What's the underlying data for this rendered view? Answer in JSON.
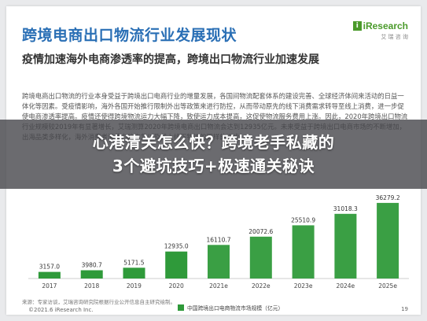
{
  "slide": {
    "title": "跨境电商出口物流行业发展现状",
    "logo": {
      "brand": "iResearch",
      "sub": "艾 瑞 咨 询"
    },
    "subtitle": "疫情加速海外电商渗透率的提高，跨境出口物流行业加速发展",
    "body": "跨境电商出口物流的行业本身受益于跨境出口电商行业的增量发展，各国间物流配套体系的建设完善、全球经济体间来活动的日益一体化等因素。受疫情影响，海外各国开始推行限制外出等政策来进行防控，从而带动原先的线下消费需求转导至线上消费，进一步促使电商渗透率提高。疫情还使得跨境物流运力大幅下降，致使运力成本提高，这促使物流服务费用上涨。因此，2020年跨境出口物流行业规模较2019年有显著增长，艾瑞测算2020年跨境电商出口物流会达到12935亿元。未来受益于跨境出口电商市场的不断增加，出海品类多样化，海外消费者消费力的恢复以及线上线下物流的同样的进步。",
    "banner": [
      "心港清关怎么快？跨境老手私藏的",
      "3个避坑技巧+极速通关秘诀"
    ],
    "source": "来源：专家访谈，艾瑞咨询研究院根据行业公开信息自主研究绘制。",
    "copyright": "©2021.6 iResearch Inc.",
    "page": "19"
  },
  "chart_data": {
    "type": "bar",
    "categories": [
      "2017",
      "2018",
      "2019",
      "2020",
      "2021e",
      "2022e",
      "2023e",
      "2024e",
      "2025e"
    ],
    "series": [
      {
        "name": "中国跨境出口电商物流市场规模（亿元）",
        "values": [
          3157.0,
          3980.7,
          5171.5,
          12935.0,
          16110.7,
          20072.6,
          25510.9,
          31018.3,
          36279.2
        ]
      }
    ],
    "labels": [
      "3157.0",
      "3980.7",
      "5171.5",
      "12935.0",
      "16110.7",
      "20072.6",
      "25510.9",
      "31018.3",
      "36279.2"
    ],
    "ylim": [
      0,
      40000
    ],
    "color": "#2f9a3a",
    "color_light": "#b7db9a",
    "legend_position": "bottom"
  }
}
